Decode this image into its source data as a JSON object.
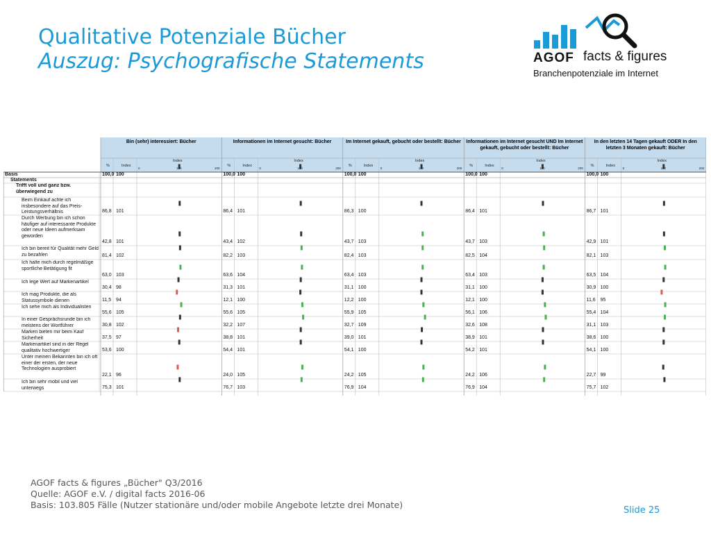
{
  "title": "Qualitative Potenziale Bücher",
  "subtitle": "Auszug: Psychografische Statements",
  "logo": {
    "brand": "AGOF",
    "product": "facts & figures",
    "tagline": "Branchenpotenziale im Internet"
  },
  "table": {
    "columns": [
      "Bin (sehr) interessiert: Bücher",
      "Informationen im Internet gesucht: Bücher",
      "Im Internet gekauft, gebucht oder bestellt: Bücher",
      "Informationen im Internet gesucht UND Im Internet gekauft, gebucht oder bestellt: Bücher",
      "In den letzten 14 Tagen gekauft ODER In den letzten 3 Monaten gekauft: Bücher"
    ],
    "subheaders": {
      "pct": "%",
      "index": "Index",
      "index_top": "Index",
      "tick0": "0",
      "tick100": "100",
      "tick200": "200"
    },
    "section_label": "Statements",
    "group_label": "Trifft voll und ganz bzw. überwiegend zu",
    "basis": {
      "label": "Basis",
      "values": [
        [
          "100,0",
          "100"
        ],
        [
          "100,0",
          "100"
        ],
        [
          "100,0",
          "100"
        ],
        [
          "100,0",
          "100"
        ],
        [
          "100,0",
          "100"
        ]
      ],
      "index": [
        100,
        100,
        100,
        100,
        100
      ]
    },
    "rows": [
      {
        "label": "Beim Einkauf achte ich insbesondere auf das Preis-Leistungsverhältnis",
        "values": [
          [
            "86,8",
            "101"
          ],
          [
            "86,4",
            "101"
          ],
          [
            "86,3",
            "100"
          ],
          [
            "86,4",
            "101"
          ],
          [
            "86,7",
            "101"
          ]
        ],
        "index": [
          101,
          101,
          100,
          101,
          101
        ]
      },
      {
        "label": "Durch Werbung bin ich schon häufiger auf interessante Produkte oder neue Ideen aufmerksam geworden",
        "values": [
          [
            "42,8",
            "101"
          ],
          [
            "43,4",
            "102"
          ],
          [
            "43,7",
            "103"
          ],
          [
            "43,7",
            "103"
          ],
          [
            "42,9",
            "101"
          ]
        ],
        "index": [
          101,
          102,
          103,
          103,
          101
        ]
      },
      {
        "label": "Ich bin bereit für Qualität mehr Geld zu bezahlen",
        "values": [
          [
            "81,4",
            "102"
          ],
          [
            "82,2",
            "103"
          ],
          [
            "82,4",
            "103"
          ],
          [
            "82,5",
            "104"
          ],
          [
            "82,1",
            "103"
          ]
        ],
        "index": [
          102,
          103,
          103,
          104,
          103
        ]
      },
      {
        "label": "Ich halte mich durch regelmäßige sportliche Betätigung fit",
        "values": [
          [
            "63,0",
            "103"
          ],
          [
            "63,6",
            "104"
          ],
          [
            "63,4",
            "103"
          ],
          [
            "63,4",
            "103"
          ],
          [
            "63,5",
            "104"
          ]
        ],
        "index": [
          103,
          104,
          103,
          103,
          104
        ]
      },
      {
        "label": "Ich lege Wert auf Markenartikel",
        "values": [
          [
            "30,4",
            "98"
          ],
          [
            "31,3",
            "101"
          ],
          [
            "31,1",
            "100"
          ],
          [
            "31,1",
            "100"
          ],
          [
            "30,9",
            "100"
          ]
        ],
        "index": [
          98,
          101,
          100,
          100,
          100
        ]
      },
      {
        "label": "Ich mag Produkte, die als Statussymbole dienen",
        "values": [
          [
            "11,5",
            "94"
          ],
          [
            "12,1",
            "100"
          ],
          [
            "12,2",
            "100"
          ],
          [
            "12,1",
            "100"
          ],
          [
            "11,6",
            "95"
          ]
        ],
        "index": [
          94,
          100,
          100,
          100,
          95
        ]
      },
      {
        "label": "Ich sehe mich als Individualisten",
        "values": [
          [
            "55,6",
            "105"
          ],
          [
            "55,6",
            "105"
          ],
          [
            "55,9",
            "105"
          ],
          [
            "56,1",
            "106"
          ],
          [
            "55,4",
            "104"
          ]
        ],
        "index": [
          105,
          105,
          105,
          106,
          104
        ]
      },
      {
        "label": "In einer Gesprächsrunde bin ich meistens der Wortführer",
        "values": [
          [
            "30,8",
            "102"
          ],
          [
            "32,2",
            "107"
          ],
          [
            "32,7",
            "109"
          ],
          [
            "32,6",
            "108"
          ],
          [
            "31,1",
            "103"
          ]
        ],
        "index": [
          102,
          107,
          109,
          108,
          103
        ]
      },
      {
        "label": "Marken bieten mir beim Kauf Sicherheit",
        "values": [
          [
            "37,5",
            "97"
          ],
          [
            "38,8",
            "101"
          ],
          [
            "39,0",
            "101"
          ],
          [
            "38,9",
            "101"
          ],
          [
            "38,6",
            "100"
          ]
        ],
        "index": [
          97,
          101,
          101,
          101,
          100
        ]
      },
      {
        "label": "Markenartikel sind in der Regel qualitativ hochwertiger",
        "values": [
          [
            "53,6",
            "100"
          ],
          [
            "54,4",
            "101"
          ],
          [
            "54,1",
            "100"
          ],
          [
            "54,2",
            "101"
          ],
          [
            "54,1",
            "100"
          ]
        ],
        "index": [
          100,
          101,
          100,
          101,
          100
        ]
      },
      {
        "label": "Unter meinen Bekannten bin ich oft einer der ersten, der neue Technologien ausprobiert",
        "values": [
          [
            "22,1",
            "96"
          ],
          [
            "24,0",
            "105"
          ],
          [
            "24,2",
            "105"
          ],
          [
            "24,2",
            "106"
          ],
          [
            "22,7",
            "99"
          ]
        ],
        "index": [
          96,
          105,
          105,
          106,
          99
        ]
      },
      {
        "label": "Ich bin sehr mobil und viel unterwegs",
        "values": [
          [
            "75,3",
            "101"
          ],
          [
            "76,7",
            "103"
          ],
          [
            "76,9",
            "104"
          ],
          [
            "76,9",
            "104"
          ],
          [
            "75,7",
            "102"
          ]
        ],
        "index": [
          101,
          103,
          104,
          104,
          102
        ]
      }
    ]
  },
  "colors": {
    "accent": "#1a9ad6",
    "header_bg": "#c5dcef",
    "bar_high": "#4caf50",
    "bar_low": "#e05a4f",
    "bar_neutral": "#333333"
  },
  "footer": {
    "line1": "AGOF facts & figures „Bücher\" Q3/2016",
    "line2": "Quelle: AGOF e.V. / digital facts 2016-06",
    "line3": "Basis: 103.805 Fälle (Nutzer stationäre und/oder mobile Angebote letzte drei Monate)"
  },
  "slide_label": "Slide 25"
}
